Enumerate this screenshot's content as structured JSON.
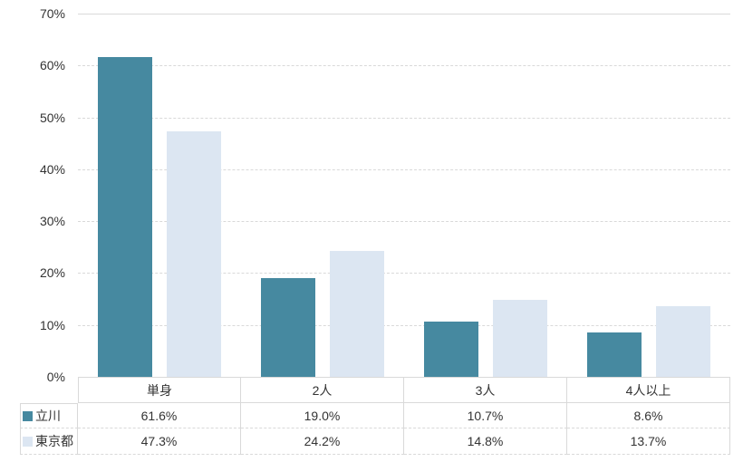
{
  "chart_data": {
    "type": "bar",
    "title": "",
    "categories": [
      "単身",
      "2人",
      "3人",
      "4人以上"
    ],
    "series": [
      {
        "name": "立川",
        "color": "#4689a0",
        "values": [
          61.6,
          19.0,
          10.7,
          8.6
        ]
      },
      {
        "name": "東京都",
        "color": "#dce6f2",
        "values": [
          47.3,
          24.2,
          14.8,
          13.7
        ]
      }
    ],
    "xlabel": "",
    "ylabel": "",
    "ylim": [
      0,
      70
    ],
    "ytick_labels": [
      "0%",
      "10%",
      "20%",
      "30%",
      "40%",
      "50%",
      "60%",
      "70%"
    ],
    "grid": "horizontal-dashed",
    "gridline_color": "#d9d9d9",
    "legend_position": "table-row-headers",
    "table": {
      "row_labels": [
        "立川",
        "東京都"
      ],
      "column_headers": [
        "単身",
        "2人",
        "3人",
        "4人以上"
      ],
      "cell_values": [
        [
          "61.6%",
          "19.0%",
          "10.7%",
          "8.6%"
        ],
        [
          "47.3%",
          "24.2%",
          "14.8%",
          "13.7%"
        ]
      ]
    }
  }
}
